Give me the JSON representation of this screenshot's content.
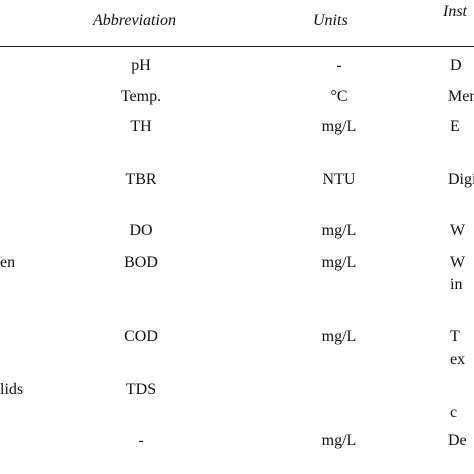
{
  "header": {
    "abbreviation": "Abbreviation",
    "units": "Units",
    "instrument": "Inst"
  },
  "rows": [
    {
      "parameter": "",
      "abbreviation": "pH",
      "units": "-",
      "instrument": "D",
      "instrument_line2": ""
    },
    {
      "parameter": "",
      "abbreviation": "Temp.",
      "units": "°C",
      "instrument": "Mer",
      "instrument_line2": ""
    },
    {
      "parameter": "",
      "abbreviation": "TH",
      "units": "mg/L",
      "instrument": "E",
      "instrument_line2": ""
    },
    {
      "parameter": "",
      "abbreviation": "TBR",
      "units": "NTU",
      "instrument": "Digi",
      "instrument_line2": ""
    },
    {
      "parameter": "",
      "abbreviation": "DO",
      "units": "mg/L",
      "instrument": "W",
      "instrument_line2": ""
    },
    {
      "parameter": "en",
      "abbreviation": "BOD",
      "units": "mg/L",
      "instrument": "W",
      "instrument_line2": "in"
    },
    {
      "parameter": "",
      "abbreviation": "COD",
      "units": "mg/L",
      "instrument": "T",
      "instrument_line2": "ex"
    },
    {
      "parameter": "lids",
      "abbreviation": "TDS",
      "units": "",
      "instrument": "",
      "instrument_line2": "c"
    },
    {
      "parameter": "",
      "abbreviation": "-",
      "units": "mg/L",
      "instrument": "De",
      "instrument_line2": ""
    }
  ]
}
